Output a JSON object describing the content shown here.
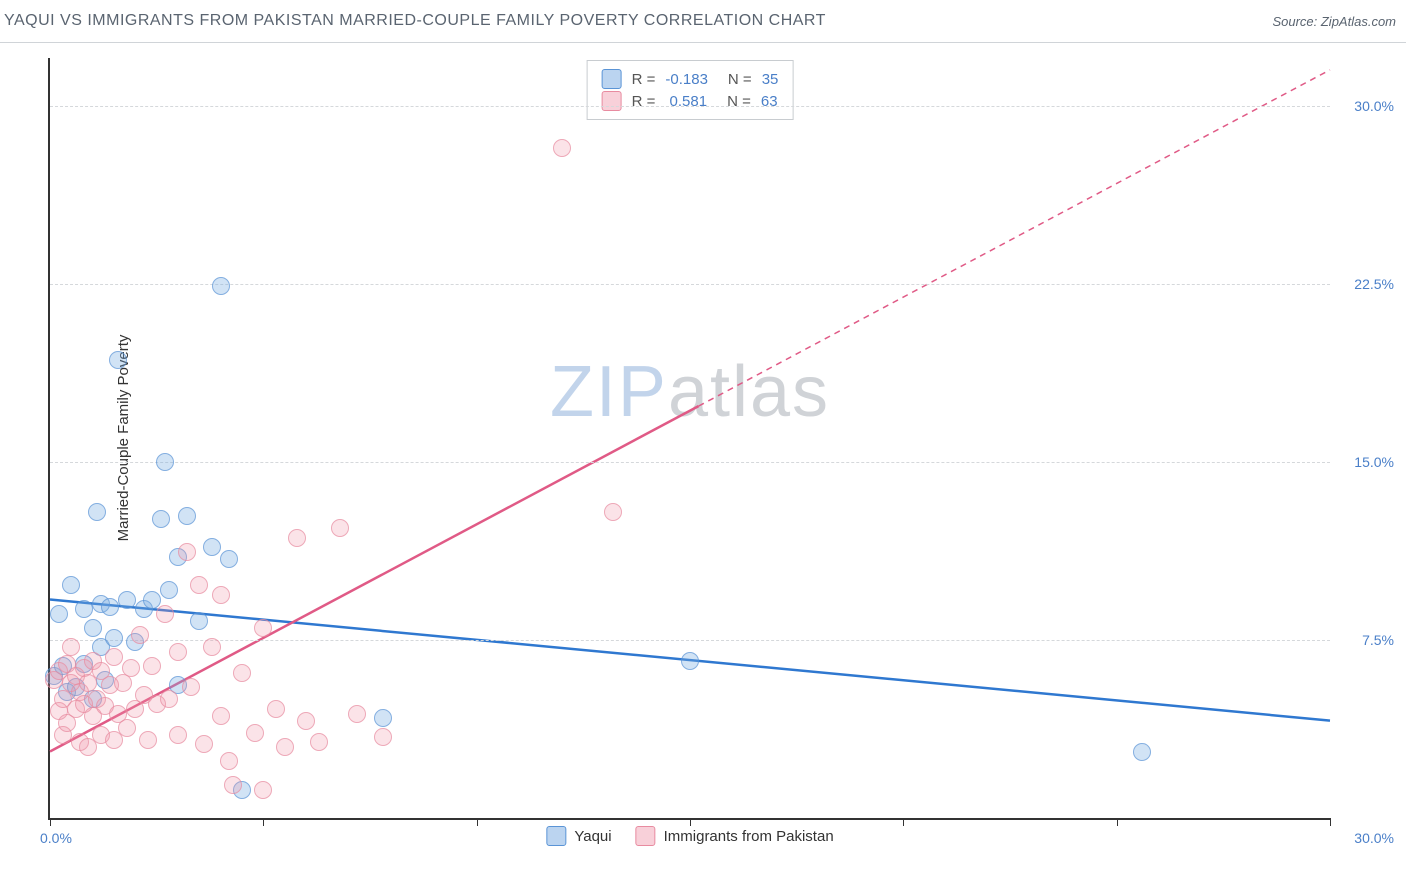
{
  "title": "YAQUI VS IMMIGRANTS FROM PAKISTAN MARRIED-COUPLE FAMILY POVERTY CORRELATION CHART",
  "source_label": "Source: ZipAtlas.com",
  "y_axis_label": "Married-Couple Family Poverty",
  "watermark": {
    "part1": "ZIP",
    "part2": "atlas"
  },
  "chart": {
    "type": "scatter",
    "xlim": [
      0,
      30
    ],
    "ylim": [
      0,
      32
    ],
    "x_ticks_minor": [
      0,
      5,
      10,
      15,
      20,
      25,
      30
    ],
    "x_tick_labels": {
      "min": "0.0%",
      "max": "30.0%"
    },
    "y_gridlines": [
      7.5,
      15.0,
      22.5,
      30.0
    ],
    "y_tick_labels": [
      "7.5%",
      "15.0%",
      "22.5%",
      "30.0%"
    ],
    "background_color": "#ffffff",
    "grid_color": "#d5d8db",
    "axis_color": "#333333",
    "series": [
      {
        "key": "yaqui",
        "label": "Yaqui",
        "marker_color_fill": "rgba(120,170,225,0.45)",
        "marker_color_stroke": "#5a94d6",
        "line_color": "#2f78d0",
        "r": -0.183,
        "n": 35,
        "regression": {
          "x1": 0,
          "y1": 9.2,
          "x2": 30,
          "y2": 4.1,
          "dashed_from_x": null
        },
        "points": [
          [
            0.1,
            6.0
          ],
          [
            0.2,
            8.6
          ],
          [
            0.3,
            6.4
          ],
          [
            0.4,
            5.3
          ],
          [
            0.5,
            9.8
          ],
          [
            0.6,
            5.5
          ],
          [
            0.8,
            6.5
          ],
          [
            0.8,
            8.8
          ],
          [
            1.0,
            5.0
          ],
          [
            1.0,
            8.0
          ],
          [
            1.1,
            12.9
          ],
          [
            1.2,
            7.2
          ],
          [
            1.2,
            9.0
          ],
          [
            1.3,
            5.8
          ],
          [
            1.4,
            8.9
          ],
          [
            1.5,
            7.6
          ],
          [
            1.6,
            19.3
          ],
          [
            1.8,
            9.2
          ],
          [
            2.0,
            7.4
          ],
          [
            2.2,
            8.8
          ],
          [
            2.4,
            9.2
          ],
          [
            2.6,
            12.6
          ],
          [
            2.7,
            15.0
          ],
          [
            2.8,
            9.6
          ],
          [
            3.0,
            5.6
          ],
          [
            3.0,
            11.0
          ],
          [
            3.2,
            12.7
          ],
          [
            3.5,
            8.3
          ],
          [
            3.8,
            11.4
          ],
          [
            4.0,
            22.4
          ],
          [
            4.2,
            10.9
          ],
          [
            4.5,
            1.2
          ],
          [
            7.8,
            4.2
          ],
          [
            15.0,
            6.6
          ],
          [
            25.6,
            2.8
          ]
        ]
      },
      {
        "key": "pakistan",
        "label": "Immigants from Pakistan",
        "display_label": "Immigrants from Pakistan",
        "marker_color_fill": "rgba(240,150,170,0.35)",
        "marker_color_stroke": "#e88ba0",
        "line_color": "#e05a86",
        "r": 0.581,
        "n": 63,
        "regression": {
          "x1": 0,
          "y1": 2.8,
          "x2": 30,
          "y2": 31.5,
          "dashed_from_x": 15.2
        },
        "points": [
          [
            0.1,
            5.8
          ],
          [
            0.2,
            4.5
          ],
          [
            0.2,
            6.2
          ],
          [
            0.3,
            3.5
          ],
          [
            0.3,
            5.0
          ],
          [
            0.4,
            6.5
          ],
          [
            0.4,
            4.0
          ],
          [
            0.5,
            5.7
          ],
          [
            0.5,
            7.2
          ],
          [
            0.6,
            4.6
          ],
          [
            0.6,
            6.0
          ],
          [
            0.7,
            3.2
          ],
          [
            0.7,
            5.3
          ],
          [
            0.8,
            6.3
          ],
          [
            0.8,
            4.8
          ],
          [
            0.9,
            5.7
          ],
          [
            0.9,
            3.0
          ],
          [
            1.0,
            6.6
          ],
          [
            1.0,
            4.3
          ],
          [
            1.1,
            5.0
          ],
          [
            1.2,
            3.5
          ],
          [
            1.2,
            6.2
          ],
          [
            1.3,
            4.7
          ],
          [
            1.4,
            5.6
          ],
          [
            1.5,
            3.3
          ],
          [
            1.5,
            6.8
          ],
          [
            1.6,
            4.4
          ],
          [
            1.7,
            5.7
          ],
          [
            1.8,
            3.8
          ],
          [
            1.9,
            6.3
          ],
          [
            2.0,
            4.6
          ],
          [
            2.1,
            7.7
          ],
          [
            2.2,
            5.2
          ],
          [
            2.3,
            3.3
          ],
          [
            2.4,
            6.4
          ],
          [
            2.5,
            4.8
          ],
          [
            2.7,
            8.6
          ],
          [
            2.8,
            5.0
          ],
          [
            3.0,
            3.5
          ],
          [
            3.0,
            7.0
          ],
          [
            3.2,
            11.2
          ],
          [
            3.3,
            5.5
          ],
          [
            3.5,
            9.8
          ],
          [
            3.6,
            3.1
          ],
          [
            3.8,
            7.2
          ],
          [
            4.0,
            4.3
          ],
          [
            4.0,
            9.4
          ],
          [
            4.2,
            2.4
          ],
          [
            4.3,
            1.4
          ],
          [
            4.5,
            6.1
          ],
          [
            4.8,
            3.6
          ],
          [
            5.0,
            8.0
          ],
          [
            5.0,
            1.2
          ],
          [
            5.3,
            4.6
          ],
          [
            5.5,
            3.0
          ],
          [
            5.8,
            11.8
          ],
          [
            6.0,
            4.1
          ],
          [
            6.3,
            3.2
          ],
          [
            6.8,
            12.2
          ],
          [
            7.2,
            4.4
          ],
          [
            7.8,
            3.4
          ],
          [
            12.0,
            28.2
          ],
          [
            13.2,
            12.9
          ]
        ]
      }
    ]
  },
  "legend_top": {
    "r_label": "R =",
    "n_label": "N =",
    "rows": [
      {
        "swatch": "blue",
        "r": "-0.183",
        "n": "35"
      },
      {
        "swatch": "pink",
        "r": " 0.581",
        "n": "63"
      }
    ]
  }
}
